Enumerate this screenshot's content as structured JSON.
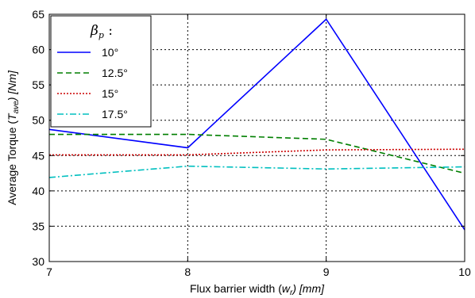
{
  "chart_data": {
    "type": "line",
    "x": [
      7,
      8,
      9,
      10
    ],
    "xlim": [
      7,
      10
    ],
    "ylim": [
      30,
      65
    ],
    "xticks": [
      "7",
      "8",
      "9",
      "10"
    ],
    "yticks": [
      "30",
      "35",
      "40",
      "45",
      "50",
      "55",
      "60",
      "65"
    ],
    "grid": true,
    "xlabel": {
      "pre": "Flux barrier width (",
      "var": "w",
      "sub": "r",
      "post": ") [mm]"
    },
    "ylabel": {
      "pre": "Average Torque (",
      "var": "T",
      "sub": "ave",
      "post": ") [Nm]"
    },
    "legend": {
      "title": {
        "var": "β",
        "sub": "p",
        "post": " :"
      },
      "placement": "top-left",
      "entries": [
        "10°",
        "12.5°",
        "15°",
        "17.5°"
      ]
    },
    "series": [
      {
        "name": "10°",
        "values": [
          48.7,
          46.1,
          64.3,
          34.5
        ],
        "color": "#0000ff",
        "dash": "solid"
      },
      {
        "name": "12.5°",
        "values": [
          48.0,
          48.0,
          47.3,
          42.5
        ],
        "color": "#007f00",
        "dash": "dashed"
      },
      {
        "name": "15°",
        "values": [
          45.1,
          45.1,
          45.8,
          45.9
        ],
        "color": "#cc0000",
        "dash": "dotted"
      },
      {
        "name": "17.5°",
        "values": [
          41.9,
          43.5,
          43.1,
          43.4
        ],
        "color": "#00bfbf",
        "dash": "dashdot"
      }
    ]
  }
}
